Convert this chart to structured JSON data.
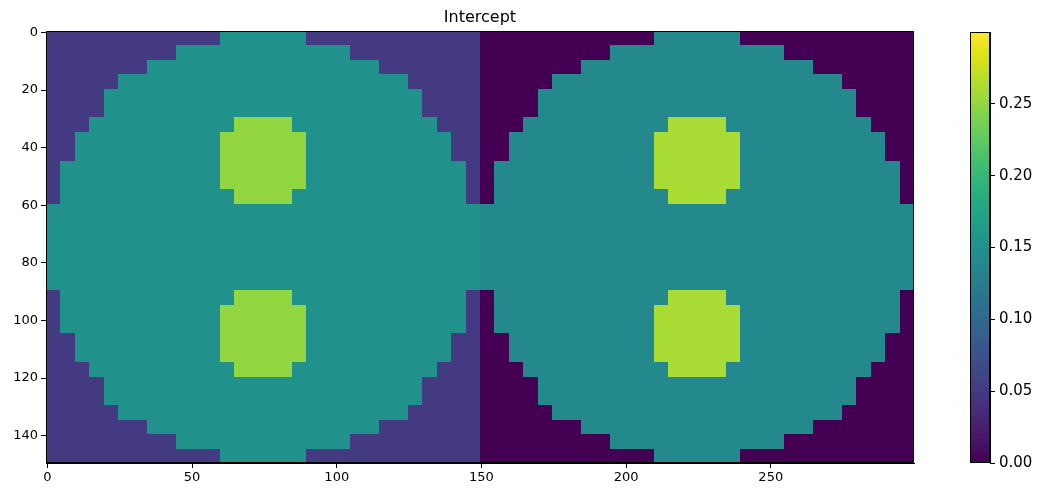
{
  "chart_data": {
    "type": "heatmap",
    "title": "Intercept",
    "xlim": [
      -0.5,
      299.5
    ],
    "ylim": [
      149.5,
      -0.5
    ],
    "xticks": [
      0,
      50,
      100,
      150,
      200,
      250
    ],
    "yticks": [
      0,
      20,
      40,
      60,
      80,
      100,
      120,
      140
    ],
    "clim": [
      0,
      0.3
    ],
    "cticks": [
      {
        "value": 0,
        "label": "0.00"
      },
      0.05,
      {
        "value": 0.1,
        "label": "0.10"
      },
      0.15,
      {
        "value": 0.2,
        "label": "0.20"
      },
      0.25
    ],
    "cells": [
      [
        0.05,
        0.05,
        0.05,
        0.05,
        0.05,
        0.05,
        0.05,
        0.05,
        0.05,
        0.05,
        0.05,
        0.05,
        0.15,
        0.15,
        0.15,
        0.15,
        0.15,
        0.15,
        0.05,
        0.05,
        0.05,
        0.05,
        0.05,
        0.05,
        0.05,
        0.05,
        0.05,
        0.05,
        0.05,
        0.05,
        0,
        0,
        0,
        0,
        0,
        0,
        0,
        0,
        0,
        0,
        0,
        0,
        0.14,
        0.14,
        0.14,
        0.14,
        0.14,
        0.14,
        0,
        0,
        0,
        0,
        0,
        0,
        0,
        0,
        0,
        0,
        0,
        0
      ],
      [
        0.05,
        0.05,
        0.05,
        0.05,
        0.05,
        0.05,
        0.05,
        0.05,
        0.05,
        0.15,
        0.15,
        0.15,
        0.15,
        0.15,
        0.15,
        0.15,
        0.15,
        0.15,
        0.15,
        0.15,
        0.15,
        0.05,
        0.05,
        0.05,
        0.05,
        0.05,
        0.05,
        0.05,
        0.05,
        0.05,
        0,
        0,
        0,
        0,
        0,
        0,
        0,
        0,
        0,
        0.14,
        0.14,
        0.14,
        0.14,
        0.14,
        0.14,
        0.14,
        0.14,
        0.14,
        0.14,
        0.14,
        0.14,
        0,
        0,
        0,
        0,
        0,
        0,
        0,
        0,
        0
      ],
      [
        0.05,
        0.05,
        0.05,
        0.05,
        0.05,
        0.05,
        0.05,
        0.15,
        0.15,
        0.15,
        0.15,
        0.15,
        0.15,
        0.15,
        0.15,
        0.15,
        0.15,
        0.15,
        0.15,
        0.15,
        0.15,
        0.15,
        0.15,
        0.05,
        0.05,
        0.05,
        0.05,
        0.05,
        0.05,
        0.05,
        0,
        0,
        0,
        0,
        0,
        0,
        0,
        0.14,
        0.14,
        0.14,
        0.14,
        0.14,
        0.14,
        0.14,
        0.14,
        0.14,
        0.14,
        0.14,
        0.14,
        0.14,
        0.14,
        0.14,
        0.14,
        0,
        0,
        0,
        0,
        0,
        0,
        0
      ],
      [
        0.05,
        0.05,
        0.05,
        0.05,
        0.05,
        0.15,
        0.15,
        0.15,
        0.15,
        0.15,
        0.15,
        0.15,
        0.15,
        0.15,
        0.15,
        0.15,
        0.15,
        0.15,
        0.15,
        0.15,
        0.15,
        0.15,
        0.15,
        0.15,
        0.15,
        0.05,
        0.05,
        0.05,
        0.05,
        0.05,
        0,
        0,
        0,
        0,
        0,
        0.14,
        0.14,
        0.14,
        0.14,
        0.14,
        0.14,
        0.14,
        0.14,
        0.14,
        0.14,
        0.14,
        0.14,
        0.14,
        0.14,
        0.14,
        0.14,
        0.14,
        0.14,
        0.14,
        0.14,
        0,
        0,
        0,
        0,
        0
      ],
      [
        0.05,
        0.05,
        0.05,
        0.05,
        0.15,
        0.15,
        0.15,
        0.15,
        0.15,
        0.15,
        0.15,
        0.15,
        0.15,
        0.15,
        0.15,
        0.15,
        0.15,
        0.15,
        0.15,
        0.15,
        0.15,
        0.15,
        0.15,
        0.15,
        0.15,
        0.15,
        0.05,
        0.05,
        0.05,
        0.05,
        0,
        0,
        0,
        0,
        0.14,
        0.14,
        0.14,
        0.14,
        0.14,
        0.14,
        0.14,
        0.14,
        0.14,
        0.14,
        0.14,
        0.14,
        0.14,
        0.14,
        0.14,
        0.14,
        0.14,
        0.14,
        0.14,
        0.14,
        0.14,
        0.14,
        0,
        0,
        0,
        0
      ],
      [
        0.05,
        0.05,
        0.05,
        0.05,
        0.15,
        0.15,
        0.15,
        0.15,
        0.15,
        0.15,
        0.15,
        0.15,
        0.15,
        0.15,
        0.15,
        0.15,
        0.15,
        0.15,
        0.15,
        0.15,
        0.15,
        0.15,
        0.15,
        0.15,
        0.15,
        0.15,
        0.05,
        0.05,
        0.05,
        0.05,
        0,
        0,
        0,
        0,
        0.14,
        0.14,
        0.14,
        0.14,
        0.14,
        0.14,
        0.14,
        0.14,
        0.14,
        0.14,
        0.14,
        0.14,
        0.14,
        0.14,
        0.14,
        0.14,
        0.14,
        0.14,
        0.14,
        0.14,
        0.14,
        0.14,
        0,
        0,
        0,
        0
      ],
      [
        0.05,
        0.05,
        0.05,
        0.15,
        0.15,
        0.15,
        0.15,
        0.15,
        0.15,
        0.15,
        0.15,
        0.15,
        0.15,
        0.25,
        0.25,
        0.25,
        0.25,
        0.15,
        0.15,
        0.15,
        0.15,
        0.15,
        0.15,
        0.15,
        0.15,
        0.15,
        0.15,
        0.05,
        0.05,
        0.05,
        0,
        0,
        0,
        0.14,
        0.14,
        0.14,
        0.14,
        0.14,
        0.14,
        0.14,
        0.14,
        0.14,
        0.14,
        0.26,
        0.26,
        0.26,
        0.26,
        0.14,
        0.14,
        0.14,
        0.14,
        0.14,
        0.14,
        0.14,
        0.14,
        0.14,
        0.14,
        0,
        0,
        0
      ],
      [
        0.05,
        0.05,
        0.15,
        0.15,
        0.15,
        0.15,
        0.15,
        0.15,
        0.15,
        0.15,
        0.15,
        0.15,
        0.25,
        0.25,
        0.25,
        0.25,
        0.25,
        0.25,
        0.15,
        0.15,
        0.15,
        0.15,
        0.15,
        0.15,
        0.15,
        0.15,
        0.15,
        0.15,
        0.05,
        0.05,
        0,
        0,
        0.14,
        0.14,
        0.14,
        0.14,
        0.14,
        0.14,
        0.14,
        0.14,
        0.14,
        0.14,
        0.26,
        0.26,
        0.26,
        0.26,
        0.26,
        0.26,
        0.14,
        0.14,
        0.14,
        0.14,
        0.14,
        0.14,
        0.14,
        0.14,
        0.14,
        0.14,
        0,
        0
      ],
      [
        0.05,
        0.05,
        0.15,
        0.15,
        0.15,
        0.15,
        0.15,
        0.15,
        0.15,
        0.15,
        0.15,
        0.15,
        0.25,
        0.25,
        0.25,
        0.25,
        0.25,
        0.25,
        0.15,
        0.15,
        0.15,
        0.15,
        0.15,
        0.15,
        0.15,
        0.15,
        0.15,
        0.15,
        0.05,
        0.05,
        0,
        0,
        0.14,
        0.14,
        0.14,
        0.14,
        0.14,
        0.14,
        0.14,
        0.14,
        0.14,
        0.14,
        0.26,
        0.26,
        0.26,
        0.26,
        0.26,
        0.26,
        0.14,
        0.14,
        0.14,
        0.14,
        0.14,
        0.14,
        0.14,
        0.14,
        0.14,
        0.14,
        0,
        0
      ],
      [
        0.05,
        0.15,
        0.15,
        0.15,
        0.15,
        0.15,
        0.15,
        0.15,
        0.15,
        0.15,
        0.15,
        0.15,
        0.25,
        0.25,
        0.25,
        0.25,
        0.25,
        0.25,
        0.15,
        0.15,
        0.15,
        0.15,
        0.15,
        0.15,
        0.15,
        0.15,
        0.15,
        0.15,
        0.15,
        0.05,
        0,
        0.14,
        0.14,
        0.14,
        0.14,
        0.14,
        0.14,
        0.14,
        0.14,
        0.14,
        0.14,
        0.14,
        0.26,
        0.26,
        0.26,
        0.26,
        0.26,
        0.26,
        0.14,
        0.14,
        0.14,
        0.14,
        0.14,
        0.14,
        0.14,
        0.14,
        0.14,
        0.14,
        0.14,
        0
      ],
      [
        0.05,
        0.15,
        0.15,
        0.15,
        0.15,
        0.15,
        0.15,
        0.15,
        0.15,
        0.15,
        0.15,
        0.15,
        0.25,
        0.25,
        0.25,
        0.25,
        0.25,
        0.25,
        0.15,
        0.15,
        0.15,
        0.15,
        0.15,
        0.15,
        0.15,
        0.15,
        0.15,
        0.15,
        0.15,
        0.05,
        0,
        0.14,
        0.14,
        0.14,
        0.14,
        0.14,
        0.14,
        0.14,
        0.14,
        0.14,
        0.14,
        0.14,
        0.26,
        0.26,
        0.26,
        0.26,
        0.26,
        0.26,
        0.14,
        0.14,
        0.14,
        0.14,
        0.14,
        0.14,
        0.14,
        0.14,
        0.14,
        0.14,
        0.14,
        0
      ],
      [
        0.05,
        0.15,
        0.15,
        0.15,
        0.15,
        0.15,
        0.15,
        0.15,
        0.15,
        0.15,
        0.15,
        0.15,
        0.15,
        0.25,
        0.25,
        0.25,
        0.25,
        0.15,
        0.15,
        0.15,
        0.15,
        0.15,
        0.15,
        0.15,
        0.15,
        0.15,
        0.15,
        0.15,
        0.15,
        0.05,
        0,
        0.14,
        0.14,
        0.14,
        0.14,
        0.14,
        0.14,
        0.14,
        0.14,
        0.14,
        0.14,
        0.14,
        0.14,
        0.26,
        0.26,
        0.26,
        0.26,
        0.14,
        0.14,
        0.14,
        0.14,
        0.14,
        0.14,
        0.14,
        0.14,
        0.14,
        0.14,
        0.14,
        0.14,
        0
      ],
      [
        0.15,
        0.15,
        0.15,
        0.15,
        0.15,
        0.15,
        0.15,
        0.15,
        0.15,
        0.15,
        0.15,
        0.15,
        0.15,
        0.15,
        0.15,
        0.15,
        0.15,
        0.15,
        0.15,
        0.15,
        0.15,
        0.15,
        0.15,
        0.15,
        0.15,
        0.15,
        0.15,
        0.15,
        0.15,
        0.15,
        0.14,
        0.14,
        0.14,
        0.14,
        0.14,
        0.14,
        0.14,
        0.14,
        0.14,
        0.14,
        0.14,
        0.14,
        0.14,
        0.14,
        0.14,
        0.14,
        0.14,
        0.14,
        0.14,
        0.14,
        0.14,
        0.14,
        0.14,
        0.14,
        0.14,
        0.14,
        0.14,
        0.14,
        0.14,
        0.14
      ],
      [
        0.15,
        0.15,
        0.15,
        0.15,
        0.15,
        0.15,
        0.15,
        0.15,
        0.15,
        0.15,
        0.15,
        0.15,
        0.15,
        0.15,
        0.15,
        0.15,
        0.15,
        0.15,
        0.15,
        0.15,
        0.15,
        0.15,
        0.15,
        0.15,
        0.15,
        0.15,
        0.15,
        0.15,
        0.15,
        0.15,
        0.14,
        0.14,
        0.14,
        0.14,
        0.14,
        0.14,
        0.14,
        0.14,
        0.14,
        0.14,
        0.14,
        0.14,
        0.14,
        0.14,
        0.14,
        0.14,
        0.14,
        0.14,
        0.14,
        0.14,
        0.14,
        0.14,
        0.14,
        0.14,
        0.14,
        0.14,
        0.14,
        0.14,
        0.14,
        0.14
      ],
      [
        0.15,
        0.15,
        0.15,
        0.15,
        0.15,
        0.15,
        0.15,
        0.15,
        0.15,
        0.15,
        0.15,
        0.15,
        0.15,
        0.15,
        0.15,
        0.15,
        0.15,
        0.15,
        0.15,
        0.15,
        0.15,
        0.15,
        0.15,
        0.15,
        0.15,
        0.15,
        0.15,
        0.15,
        0.15,
        0.15,
        0.14,
        0.14,
        0.14,
        0.14,
        0.14,
        0.14,
        0.14,
        0.14,
        0.14,
        0.14,
        0.14,
        0.14,
        0.14,
        0.14,
        0.14,
        0.14,
        0.14,
        0.14,
        0.14,
        0.14,
        0.14,
        0.14,
        0.14,
        0.14,
        0.14,
        0.14,
        0.14,
        0.14,
        0.14,
        0.14
      ],
      [
        0.15,
        0.15,
        0.15,
        0.15,
        0.15,
        0.15,
        0.15,
        0.15,
        0.15,
        0.15,
        0.15,
        0.15,
        0.15,
        0.15,
        0.15,
        0.15,
        0.15,
        0.15,
        0.15,
        0.15,
        0.15,
        0.15,
        0.15,
        0.15,
        0.15,
        0.15,
        0.15,
        0.15,
        0.15,
        0.15,
        0.14,
        0.14,
        0.14,
        0.14,
        0.14,
        0.14,
        0.14,
        0.14,
        0.14,
        0.14,
        0.14,
        0.14,
        0.14,
        0.14,
        0.14,
        0.14,
        0.14,
        0.14,
        0.14,
        0.14,
        0.14,
        0.14,
        0.14,
        0.14,
        0.14,
        0.14,
        0.14,
        0.14,
        0.14,
        0.14
      ],
      [
        0.15,
        0.15,
        0.15,
        0.15,
        0.15,
        0.15,
        0.15,
        0.15,
        0.15,
        0.15,
        0.15,
        0.15,
        0.15,
        0.15,
        0.15,
        0.15,
        0.15,
        0.15,
        0.15,
        0.15,
        0.15,
        0.15,
        0.15,
        0.15,
        0.15,
        0.15,
        0.15,
        0.15,
        0.15,
        0.15,
        0.14,
        0.14,
        0.14,
        0.14,
        0.14,
        0.14,
        0.14,
        0.14,
        0.14,
        0.14,
        0.14,
        0.14,
        0.14,
        0.14,
        0.14,
        0.14,
        0.14,
        0.14,
        0.14,
        0.14,
        0.14,
        0.14,
        0.14,
        0.14,
        0.14,
        0.14,
        0.14,
        0.14,
        0.14,
        0.14
      ],
      [
        0.15,
        0.15,
        0.15,
        0.15,
        0.15,
        0.15,
        0.15,
        0.15,
        0.15,
        0.15,
        0.15,
        0.15,
        0.15,
        0.15,
        0.15,
        0.15,
        0.15,
        0.15,
        0.15,
        0.15,
        0.15,
        0.15,
        0.15,
        0.15,
        0.15,
        0.15,
        0.15,
        0.15,
        0.15,
        0.15,
        0.14,
        0.14,
        0.14,
        0.14,
        0.14,
        0.14,
        0.14,
        0.14,
        0.14,
        0.14,
        0.14,
        0.14,
        0.14,
        0.14,
        0.14,
        0.14,
        0.14,
        0.14,
        0.14,
        0.14,
        0.14,
        0.14,
        0.14,
        0.14,
        0.14,
        0.14,
        0.14,
        0.14,
        0.14,
        0.14
      ],
      [
        0.05,
        0.15,
        0.15,
        0.15,
        0.15,
        0.15,
        0.15,
        0.15,
        0.15,
        0.15,
        0.15,
        0.15,
        0.15,
        0.25,
        0.25,
        0.25,
        0.25,
        0.15,
        0.15,
        0.15,
        0.15,
        0.15,
        0.15,
        0.15,
        0.15,
        0.15,
        0.15,
        0.15,
        0.15,
        0.05,
        0,
        0.14,
        0.14,
        0.14,
        0.14,
        0.14,
        0.14,
        0.14,
        0.14,
        0.14,
        0.14,
        0.14,
        0.14,
        0.26,
        0.26,
        0.26,
        0.26,
        0.14,
        0.14,
        0.14,
        0.14,
        0.14,
        0.14,
        0.14,
        0.14,
        0.14,
        0.14,
        0.14,
        0.14,
        0
      ],
      [
        0.05,
        0.15,
        0.15,
        0.15,
        0.15,
        0.15,
        0.15,
        0.15,
        0.15,
        0.15,
        0.15,
        0.15,
        0.25,
        0.25,
        0.25,
        0.25,
        0.25,
        0.25,
        0.15,
        0.15,
        0.15,
        0.15,
        0.15,
        0.15,
        0.15,
        0.15,
        0.15,
        0.15,
        0.15,
        0.05,
        0,
        0.14,
        0.14,
        0.14,
        0.14,
        0.14,
        0.14,
        0.14,
        0.14,
        0.14,
        0.14,
        0.14,
        0.26,
        0.26,
        0.26,
        0.26,
        0.26,
        0.26,
        0.14,
        0.14,
        0.14,
        0.14,
        0.14,
        0.14,
        0.14,
        0.14,
        0.14,
        0.14,
        0.14,
        0
      ],
      [
        0.05,
        0.15,
        0.15,
        0.15,
        0.15,
        0.15,
        0.15,
        0.15,
        0.15,
        0.15,
        0.15,
        0.15,
        0.25,
        0.25,
        0.25,
        0.25,
        0.25,
        0.25,
        0.15,
        0.15,
        0.15,
        0.15,
        0.15,
        0.15,
        0.15,
        0.15,
        0.15,
        0.15,
        0.15,
        0.05,
        0,
        0.14,
        0.14,
        0.14,
        0.14,
        0.14,
        0.14,
        0.14,
        0.14,
        0.14,
        0.14,
        0.14,
        0.26,
        0.26,
        0.26,
        0.26,
        0.26,
        0.26,
        0.14,
        0.14,
        0.14,
        0.14,
        0.14,
        0.14,
        0.14,
        0.14,
        0.14,
        0.14,
        0.14,
        0
      ],
      [
        0.05,
        0.05,
        0.15,
        0.15,
        0.15,
        0.15,
        0.15,
        0.15,
        0.15,
        0.15,
        0.15,
        0.15,
        0.25,
        0.25,
        0.25,
        0.25,
        0.25,
        0.25,
        0.15,
        0.15,
        0.15,
        0.15,
        0.15,
        0.15,
        0.15,
        0.15,
        0.15,
        0.15,
        0.05,
        0.05,
        0,
        0,
        0.14,
        0.14,
        0.14,
        0.14,
        0.14,
        0.14,
        0.14,
        0.14,
        0.14,
        0.14,
        0.26,
        0.26,
        0.26,
        0.26,
        0.26,
        0.26,
        0.14,
        0.14,
        0.14,
        0.14,
        0.14,
        0.14,
        0.14,
        0.14,
        0.14,
        0.14,
        0,
        0
      ],
      [
        0.05,
        0.05,
        0.15,
        0.15,
        0.15,
        0.15,
        0.15,
        0.15,
        0.15,
        0.15,
        0.15,
        0.15,
        0.25,
        0.25,
        0.25,
        0.25,
        0.25,
        0.25,
        0.15,
        0.15,
        0.15,
        0.15,
        0.15,
        0.15,
        0.15,
        0.15,
        0.15,
        0.15,
        0.05,
        0.05,
        0,
        0,
        0.14,
        0.14,
        0.14,
        0.14,
        0.14,
        0.14,
        0.14,
        0.14,
        0.14,
        0.14,
        0.26,
        0.26,
        0.26,
        0.26,
        0.26,
        0.26,
        0.14,
        0.14,
        0.14,
        0.14,
        0.14,
        0.14,
        0.14,
        0.14,
        0.14,
        0.14,
        0,
        0
      ],
      [
        0.05,
        0.05,
        0.05,
        0.15,
        0.15,
        0.15,
        0.15,
        0.15,
        0.15,
        0.15,
        0.15,
        0.15,
        0.15,
        0.25,
        0.25,
        0.25,
        0.25,
        0.15,
        0.15,
        0.15,
        0.15,
        0.15,
        0.15,
        0.15,
        0.15,
        0.15,
        0.15,
        0.05,
        0.05,
        0.05,
        0,
        0,
        0,
        0.14,
        0.14,
        0.14,
        0.14,
        0.14,
        0.14,
        0.14,
        0.14,
        0.14,
        0.14,
        0.26,
        0.26,
        0.26,
        0.26,
        0.14,
        0.14,
        0.14,
        0.14,
        0.14,
        0.14,
        0.14,
        0.14,
        0.14,
        0.14,
        0,
        0,
        0
      ],
      [
        0.05,
        0.05,
        0.05,
        0.05,
        0.15,
        0.15,
        0.15,
        0.15,
        0.15,
        0.15,
        0.15,
        0.15,
        0.15,
        0.15,
        0.15,
        0.15,
        0.15,
        0.15,
        0.15,
        0.15,
        0.15,
        0.15,
        0.15,
        0.15,
        0.15,
        0.15,
        0.05,
        0.05,
        0.05,
        0.05,
        0,
        0,
        0,
        0,
        0.14,
        0.14,
        0.14,
        0.14,
        0.14,
        0.14,
        0.14,
        0.14,
        0.14,
        0.14,
        0.14,
        0.14,
        0.14,
        0.14,
        0.14,
        0.14,
        0.14,
        0.14,
        0.14,
        0.14,
        0.14,
        0.14,
        0,
        0,
        0,
        0
      ],
      [
        0.05,
        0.05,
        0.05,
        0.05,
        0.15,
        0.15,
        0.15,
        0.15,
        0.15,
        0.15,
        0.15,
        0.15,
        0.15,
        0.15,
        0.15,
        0.15,
        0.15,
        0.15,
        0.15,
        0.15,
        0.15,
        0.15,
        0.15,
        0.15,
        0.15,
        0.15,
        0.05,
        0.05,
        0.05,
        0.05,
        0,
        0,
        0,
        0,
        0.14,
        0.14,
        0.14,
        0.14,
        0.14,
        0.14,
        0.14,
        0.14,
        0.14,
        0.14,
        0.14,
        0.14,
        0.14,
        0.14,
        0.14,
        0.14,
        0.14,
        0.14,
        0.14,
        0.14,
        0.14,
        0.14,
        0,
        0,
        0,
        0
      ],
      [
        0.05,
        0.05,
        0.05,
        0.05,
        0.05,
        0.15,
        0.15,
        0.15,
        0.15,
        0.15,
        0.15,
        0.15,
        0.15,
        0.15,
        0.15,
        0.15,
        0.15,
        0.15,
        0.15,
        0.15,
        0.15,
        0.15,
        0.15,
        0.15,
        0.15,
        0.05,
        0.05,
        0.05,
        0.05,
        0.05,
        0,
        0,
        0,
        0,
        0,
        0.14,
        0.14,
        0.14,
        0.14,
        0.14,
        0.14,
        0.14,
        0.14,
        0.14,
        0.14,
        0.14,
        0.14,
        0.14,
        0.14,
        0.14,
        0.14,
        0.14,
        0.14,
        0.14,
        0.14,
        0,
        0,
        0,
        0,
        0
      ],
      [
        0.05,
        0.05,
        0.05,
        0.05,
        0.05,
        0.05,
        0.05,
        0.15,
        0.15,
        0.15,
        0.15,
        0.15,
        0.15,
        0.15,
        0.15,
        0.15,
        0.15,
        0.15,
        0.15,
        0.15,
        0.15,
        0.15,
        0.15,
        0.05,
        0.05,
        0.05,
        0.05,
        0.05,
        0.05,
        0.05,
        0,
        0,
        0,
        0,
        0,
        0,
        0,
        0.14,
        0.14,
        0.14,
        0.14,
        0.14,
        0.14,
        0.14,
        0.14,
        0.14,
        0.14,
        0.14,
        0.14,
        0.14,
        0.14,
        0.14,
        0.14,
        0,
        0,
        0,
        0,
        0,
        0,
        0
      ],
      [
        0.05,
        0.05,
        0.05,
        0.05,
        0.05,
        0.05,
        0.05,
        0.05,
        0.05,
        0.15,
        0.15,
        0.15,
        0.15,
        0.15,
        0.15,
        0.15,
        0.15,
        0.15,
        0.15,
        0.15,
        0.15,
        0.05,
        0.05,
        0.05,
        0.05,
        0.05,
        0.05,
        0.05,
        0.05,
        0.05,
        0,
        0,
        0,
        0,
        0,
        0,
        0,
        0,
        0,
        0.14,
        0.14,
        0.14,
        0.14,
        0.14,
        0.14,
        0.14,
        0.14,
        0.14,
        0.14,
        0.14,
        0.14,
        0,
        0,
        0,
        0,
        0,
        0,
        0,
        0,
        0
      ],
      [
        0.05,
        0.05,
        0.05,
        0.05,
        0.05,
        0.05,
        0.05,
        0.05,
        0.05,
        0.05,
        0.05,
        0.05,
        0.15,
        0.15,
        0.15,
        0.15,
        0.15,
        0.15,
        0.05,
        0.05,
        0.05,
        0.05,
        0.05,
        0.05,
        0.05,
        0.05,
        0.05,
        0.05,
        0.05,
        0.05,
        0,
        0,
        0,
        0,
        0,
        0,
        0,
        0,
        0,
        0,
        0,
        0,
        0.14,
        0.14,
        0.14,
        0.14,
        0.14,
        0.14,
        0,
        0,
        0,
        0,
        0,
        0,
        0,
        0,
        0,
        0,
        0,
        0
      ]
    ]
  }
}
